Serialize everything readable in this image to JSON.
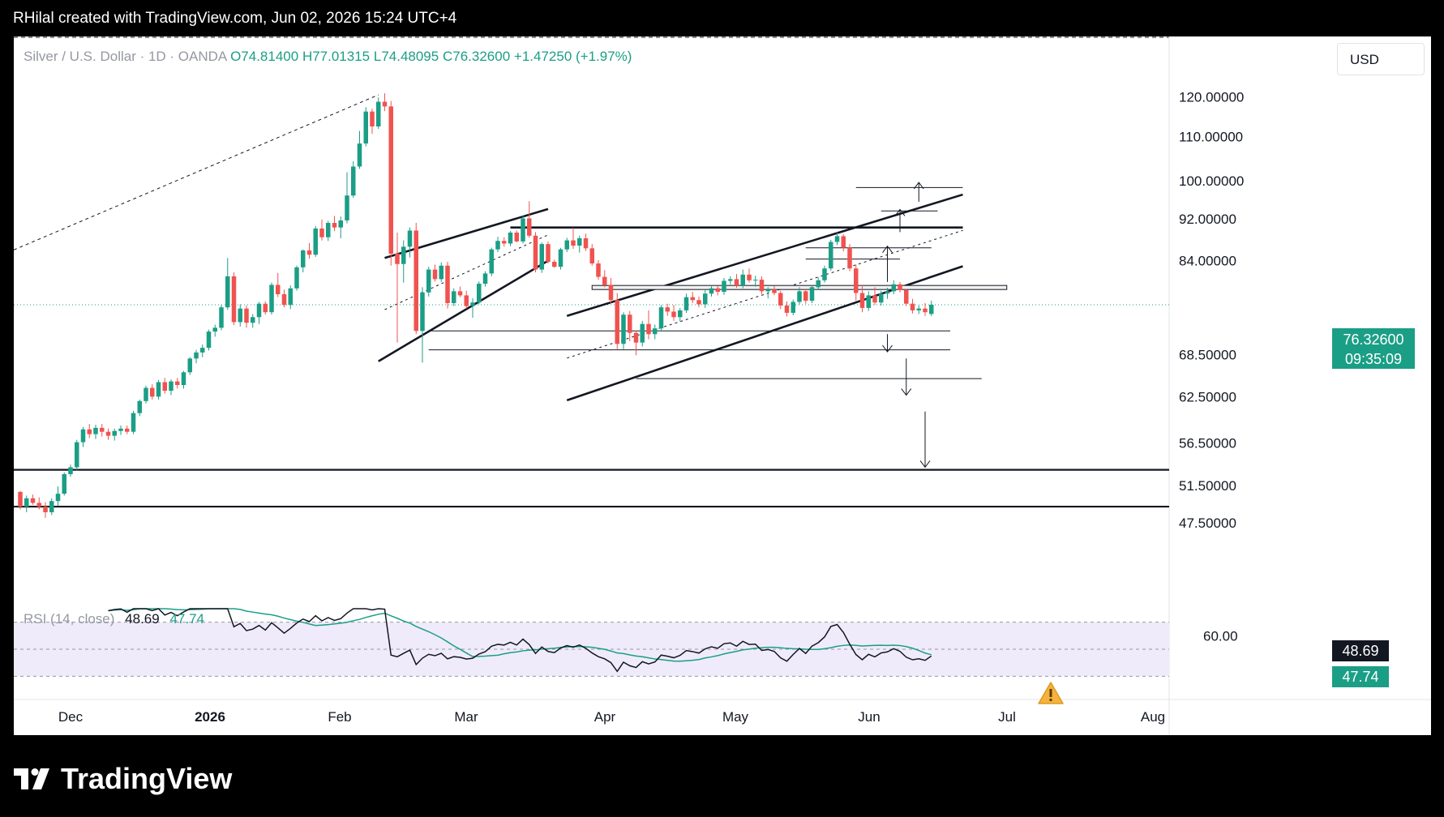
{
  "header": {
    "caption": "RHilal created with TradingView.com, Jun 02, 2026 15:24 UTC+4"
  },
  "legend": {
    "symbol": "Silver / U.S. Dollar · 1D · OANDA",
    "open": "O74.81400",
    "high": "H77.01315",
    "low": "L74.48095",
    "close": "C76.32600",
    "change": "+1.47250 (+1.97%)"
  },
  "currency_button": "USD",
  "price_tag": {
    "price": "76.32600",
    "countdown": "09:35:09"
  },
  "rsi_legend": {
    "label": "RSI (14, close)",
    "rsi_value": "48.69",
    "ma_value": "47.74"
  },
  "rsi_tags": {
    "rsi": "48.69",
    "ma": "47.74"
  },
  "price_axis_labels": [
    "120.00000",
    "110.00000",
    "100.00000",
    "92.00000",
    "84.00000",
    "68.50000",
    "62.50000",
    "56.50000",
    "51.50000",
    "47.50000"
  ],
  "rsi_axis_labels": [
    "60.00"
  ],
  "time_axis_labels": [
    "Dec",
    "2026",
    "Feb",
    "Mar",
    "Apr",
    "May",
    "Jun",
    "Jul",
    "Aug"
  ],
  "brand": {
    "name": "TradingView"
  },
  "colors": {
    "up": "#1b9e86",
    "down": "#ef5350",
    "rsi_line": "#131722",
    "rsi_ma": "#1b9e86",
    "rsi_band": "#efebfa",
    "accent": "#1b9e86"
  },
  "chart_data": {
    "type": "candlestick",
    "title": "Silver / U.S. Dollar · 1D · OANDA",
    "currency": "USD",
    "x_range": [
      "2025-11-10",
      "2026-08-10"
    ],
    "y_range": [
      47.5,
      122.0
    ],
    "log_scale": true,
    "grid": false,
    "ohlc": [
      [
        50.8,
        50.9,
        48.9,
        49.2
      ],
      [
        49.2,
        50.4,
        48.6,
        50.1
      ],
      [
        50.1,
        50.5,
        49.4,
        49.6
      ],
      [
        49.6,
        50.2,
        48.9,
        49.2
      ],
      [
        49.2,
        49.7,
        48.0,
        48.6
      ],
      [
        48.6,
        50.1,
        48.3,
        49.8
      ],
      [
        49.8,
        51.4,
        49.3,
        50.6
      ],
      [
        50.6,
        53.0,
        50.4,
        52.8
      ],
      [
        52.8,
        53.9,
        52.5,
        53.6
      ],
      [
        53.6,
        56.9,
        53.2,
        56.6
      ],
      [
        56.6,
        58.5,
        56.0,
        58.2
      ],
      [
        58.2,
        58.9,
        57.1,
        57.6
      ],
      [
        57.6,
        58.8,
        57.0,
        58.4
      ],
      [
        58.4,
        58.9,
        57.3,
        57.9
      ],
      [
        57.9,
        58.3,
        56.9,
        57.4
      ],
      [
        57.4,
        58.3,
        56.8,
        58.0
      ],
      [
        58.0,
        58.7,
        57.5,
        58.3
      ],
      [
        58.3,
        58.7,
        57.6,
        57.9
      ],
      [
        57.9,
        60.6,
        57.6,
        60.3
      ],
      [
        60.3,
        62.1,
        59.9,
        61.9
      ],
      [
        61.9,
        64.0,
        61.6,
        63.7
      ],
      [
        63.7,
        64.2,
        62.1,
        62.5
      ],
      [
        62.5,
        64.8,
        62.1,
        64.5
      ],
      [
        64.5,
        65.1,
        62.9,
        63.3
      ],
      [
        63.3,
        64.9,
        62.7,
        64.6
      ],
      [
        64.6,
        65.1,
        63.6,
        64.1
      ],
      [
        64.1,
        66.1,
        63.6,
        65.9
      ],
      [
        65.9,
        68.1,
        65.5,
        67.9
      ],
      [
        67.9,
        69.2,
        67.2,
        68.8
      ],
      [
        68.8,
        70.0,
        68.1,
        69.5
      ],
      [
        69.5,
        72.3,
        69.1,
        72.0
      ],
      [
        72.0,
        73.1,
        71.2,
        72.6
      ],
      [
        72.6,
        76.3,
        72.2,
        75.9
      ],
      [
        75.9,
        84.5,
        75.5,
        81.2
      ],
      [
        81.2,
        81.9,
        73.0,
        73.5
      ],
      [
        73.5,
        76.4,
        72.8,
        75.7
      ],
      [
        75.7,
        76.2,
        72.6,
        73.4
      ],
      [
        73.4,
        74.8,
        72.6,
        74.3
      ],
      [
        74.3,
        76.8,
        73.2,
        76.5
      ],
      [
        76.5,
        76.9,
        74.7,
        75.1
      ],
      [
        75.1,
        80.1,
        74.7,
        79.7
      ],
      [
        79.7,
        81.8,
        77.6,
        78.1
      ],
      [
        78.1,
        78.9,
        75.9,
        76.3
      ],
      [
        76.3,
        79.6,
        75.6,
        79.1
      ],
      [
        79.1,
        83.1,
        78.7,
        82.8
      ],
      [
        82.8,
        86.1,
        81.9,
        85.9
      ],
      [
        85.9,
        87.3,
        84.4,
        85.1
      ],
      [
        85.1,
        90.6,
        84.7,
        90.1
      ],
      [
        90.1,
        91.9,
        87.8,
        88.4
      ],
      [
        88.4,
        91.6,
        87.7,
        91.2
      ],
      [
        91.2,
        92.6,
        89.6,
        90.3
      ],
      [
        90.3,
        92.5,
        88.2,
        91.7
      ],
      [
        91.7,
        101.8,
        91.1,
        96.8
      ],
      [
        96.8,
        104.3,
        96.3,
        103.1
      ],
      [
        103.1,
        111.4,
        102.6,
        108.4
      ],
      [
        108.4,
        117.3,
        107.7,
        116.2
      ],
      [
        116.2,
        116.9,
        110.7,
        112.5
      ],
      [
        112.5,
        119.8,
        111.9,
        118.7
      ],
      [
        118.7,
        120.9,
        116.3,
        117.5
      ],
      [
        117.5,
        118.9,
        83.1,
        85.3
      ],
      [
        85.3,
        89.3,
        70.3,
        83.4
      ],
      [
        83.4,
        87.8,
        80.1,
        86.6
      ],
      [
        86.6,
        90.3,
        84.6,
        89.7
      ],
      [
        89.7,
        91.2,
        71.6,
        72.1
      ],
      [
        72.1,
        79.3,
        67.3,
        78.4
      ],
      [
        78.4,
        82.9,
        77.7,
        82.4
      ],
      [
        82.4,
        83.3,
        80.3,
        80.7
      ],
      [
        80.7,
        83.7,
        80.2,
        83.1
      ],
      [
        83.1,
        83.8,
        75.7,
        76.6
      ],
      [
        76.6,
        79.1,
        76.1,
        78.6
      ],
      [
        78.6,
        79.4,
        77.6,
        77.9
      ],
      [
        77.9,
        78.7,
        75.7,
        76.1
      ],
      [
        76.1,
        77.4,
        74.2,
        76.7
      ],
      [
        76.7,
        80.3,
        76.4,
        79.9
      ],
      [
        79.9,
        82.1,
        79.4,
        81.7
      ],
      [
        81.7,
        86.4,
        81.2,
        86.1
      ],
      [
        86.1,
        88.5,
        85.6,
        87.7
      ],
      [
        87.7,
        88.4,
        86.6,
        87.2
      ],
      [
        87.2,
        89.6,
        86.7,
        89.3
      ],
      [
        89.3,
        89.7,
        87.4,
        87.6
      ],
      [
        87.6,
        92.6,
        87.2,
        92.1
      ],
      [
        92.1,
        95.6,
        88.3,
        88.7
      ],
      [
        88.7,
        89.4,
        81.9,
        82.4
      ],
      [
        82.4,
        87.4,
        81.8,
        87.1
      ],
      [
        87.1,
        87.6,
        83.5,
        83.8
      ],
      [
        83.8,
        84.2,
        82.7,
        82.9
      ],
      [
        82.9,
        86.4,
        82.4,
        86.1
      ],
      [
        86.1,
        88.3,
        85.6,
        87.8
      ],
      [
        87.8,
        90.2,
        86.2,
        86.8
      ],
      [
        86.8,
        88.7,
        85.5,
        88.2
      ],
      [
        88.2,
        89.1,
        85.8,
        86.3
      ],
      [
        86.3,
        87.1,
        83.1,
        83.5
      ],
      [
        83.5,
        84.1,
        80.6,
        81.1
      ],
      [
        81.1,
        82.3,
        79.3,
        79.7
      ],
      [
        79.7,
        80.9,
        76.6,
        77.1
      ],
      [
        77.1,
        78.3,
        69.3,
        70.1
      ],
      [
        70.1,
        75.1,
        69.3,
        74.7
      ],
      [
        74.7,
        75.3,
        70.5,
        71.8
      ],
      [
        71.8,
        72.2,
        68.4,
        70.3
      ],
      [
        70.3,
        73.7,
        69.7,
        73.2
      ],
      [
        73.2,
        75.4,
        70.8,
        71.6
      ],
      [
        71.6,
        73.1,
        70.8,
        72.5
      ],
      [
        72.5,
        76.3,
        72.1,
        75.9
      ],
      [
        75.9,
        76.5,
        74.5,
        75.2
      ],
      [
        75.2,
        76.3,
        73.7,
        74.3
      ],
      [
        74.3,
        75.8,
        73.6,
        75.4
      ],
      [
        75.4,
        78.2,
        75.0,
        77.6
      ],
      [
        77.6,
        78.5,
        76.6,
        77.1
      ],
      [
        77.1,
        77.7,
        75.9,
        76.4
      ],
      [
        76.4,
        78.9,
        75.8,
        78.2
      ],
      [
        78.2,
        79.6,
        77.7,
        79.1
      ],
      [
        79.1,
        79.5,
        77.9,
        78.5
      ],
      [
        78.5,
        80.9,
        78.0,
        80.4
      ],
      [
        80.4,
        81.2,
        79.8,
        80.7
      ],
      [
        80.7,
        81.6,
        79.2,
        79.6
      ],
      [
        79.6,
        82.4,
        79.1,
        81.5
      ],
      [
        81.5,
        82.6,
        80.1,
        80.5
      ],
      [
        80.5,
        81.3,
        79.4,
        80.6
      ],
      [
        80.6,
        81.2,
        78.1,
        78.6
      ],
      [
        78.6,
        79.3,
        77.4,
        78.9
      ],
      [
        78.9,
        79.5,
        77.9,
        78.3
      ],
      [
        78.3,
        78.7,
        75.6,
        76.2
      ],
      [
        76.2,
        76.9,
        74.4,
        75.0
      ],
      [
        75.0,
        77.2,
        74.6,
        76.8
      ],
      [
        76.8,
        79.3,
        76.4,
        78.6
      ],
      [
        78.6,
        79.0,
        76.5,
        77.0
      ],
      [
        77.0,
        79.6,
        76.6,
        79.3
      ],
      [
        79.3,
        81.0,
        78.8,
        80.5
      ],
      [
        80.5,
        83.1,
        80.1,
        82.6
      ],
      [
        82.6,
        87.9,
        82.2,
        87.5
      ],
      [
        87.5,
        89.3,
        86.9,
        88.6
      ],
      [
        88.6,
        89.0,
        85.7,
        86.4
      ],
      [
        86.4,
        87.1,
        82.1,
        82.6
      ],
      [
        82.6,
        83.3,
        77.0,
        78.3
      ],
      [
        78.3,
        79.7,
        75.1,
        75.8
      ],
      [
        75.8,
        78.6,
        75.3,
        77.9
      ],
      [
        77.9,
        79.3,
        76.3,
        76.7
      ],
      [
        76.7,
        78.7,
        76.2,
        78.2
      ],
      [
        78.2,
        79.2,
        77.3,
        78.6
      ],
      [
        78.6,
        80.5,
        78.1,
        79.8
      ],
      [
        79.8,
        80.2,
        78.4,
        78.8
      ],
      [
        78.8,
        79.0,
        76.1,
        76.5
      ],
      [
        76.5,
        77.3,
        74.9,
        75.4
      ],
      [
        75.4,
        76.2,
        74.8,
        75.7
      ],
      [
        75.7,
        76.6,
        74.5,
        75.1
      ],
      [
        74.81,
        77.01,
        74.48,
        76.33
      ]
    ],
    "rsi": {
      "period": 14,
      "source": "close",
      "axis_label": "60.00",
      "last_rsi": 48.69,
      "last_ma": 47.74
    },
    "annotations": {
      "horizontal_levels": [
        53.3,
        49.2
      ],
      "resistance_line": 90.3,
      "support_levels": [
        72.1,
        69.2,
        65.0
      ],
      "target_levels": [
        98.5,
        93.6,
        86.4,
        84.3
      ]
    }
  }
}
